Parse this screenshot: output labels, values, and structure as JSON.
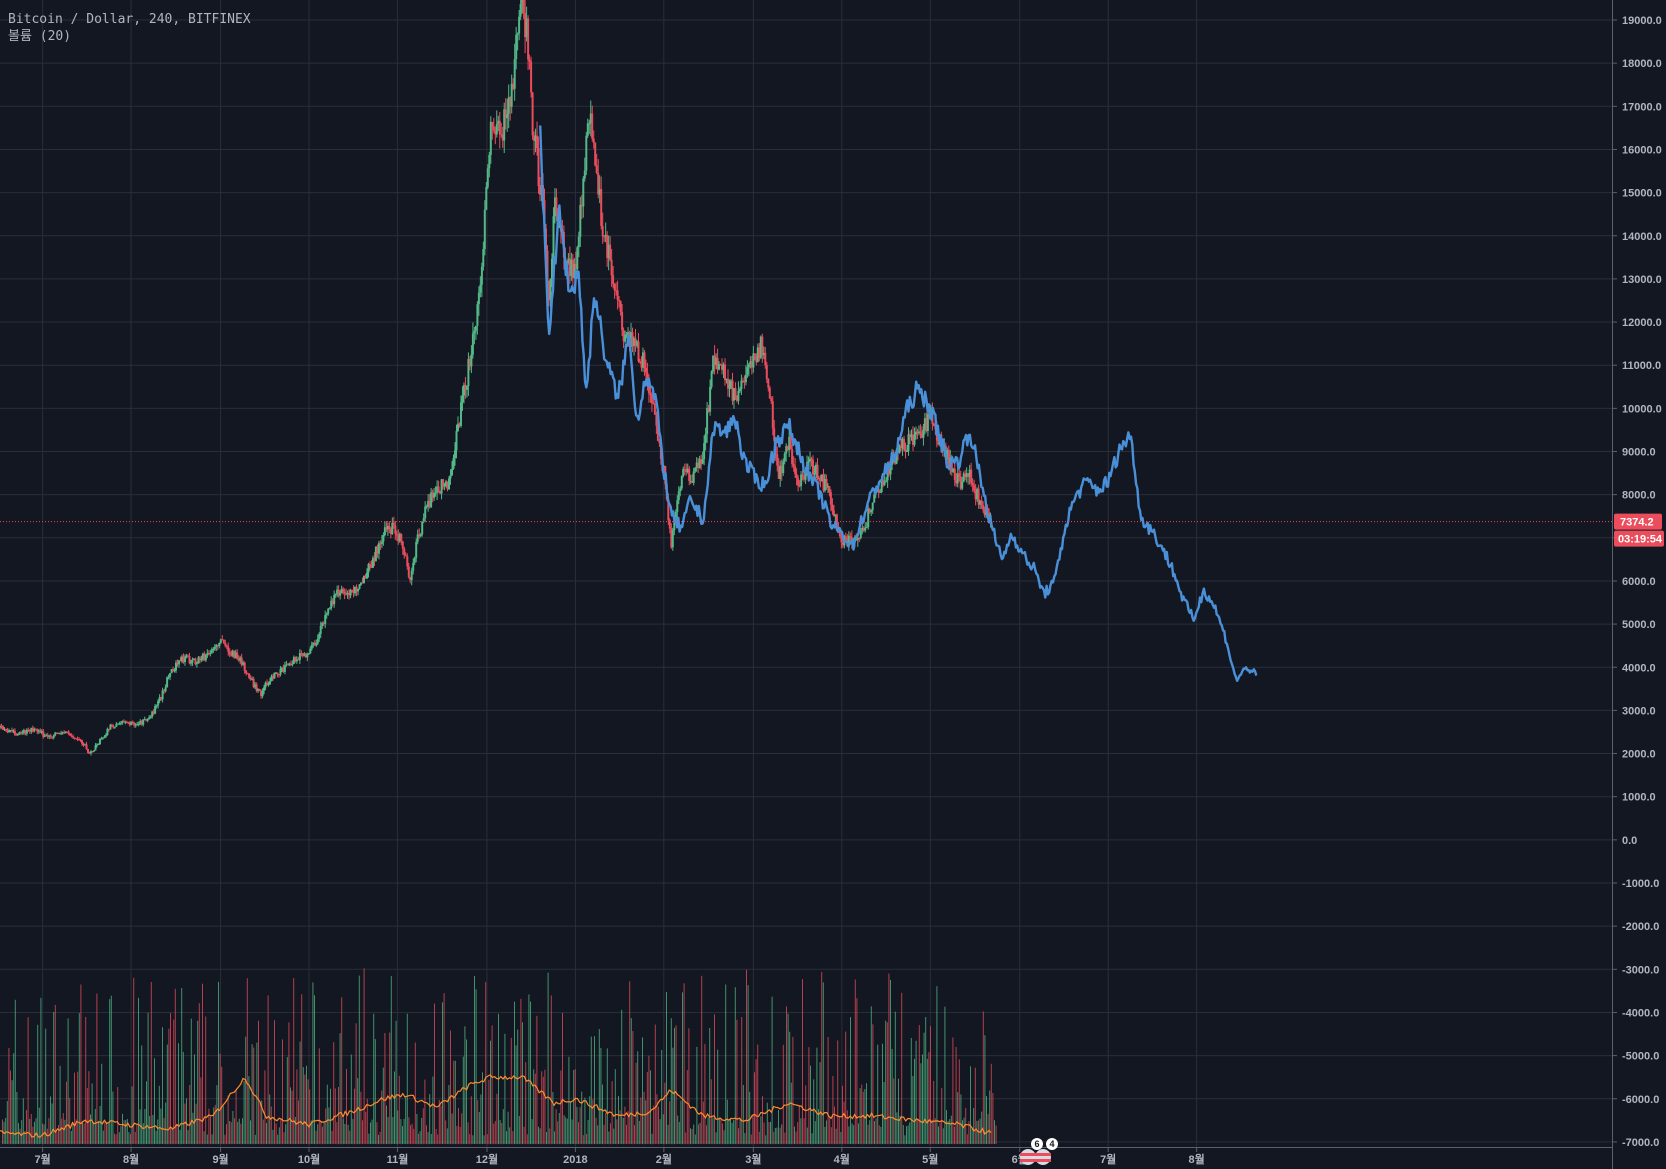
{
  "header": {
    "title": "Bitcoin / Dollar, 240, BITFINEX",
    "indicator": "볼륨 (20)"
  },
  "colors": {
    "background": "#131722",
    "grid": "#2a2e39",
    "up": "#53b987",
    "down": "#eb4d5c",
    "projection": "#4a90d9",
    "volume_ma": "#ff8c2e",
    "current_price": "#eb4d5c",
    "axis_text": "#b2b5be"
  },
  "current_price": {
    "value": 7374.2,
    "label": "7374.2",
    "countdown": "03:19:54"
  },
  "event_badges": [
    {
      "icon": "us-flag-icon",
      "count": "6"
    },
    {
      "icon": "us-flag-icon",
      "count": "4"
    }
  ],
  "chart_data": {
    "type": "line",
    "title": "Bitcoin / Dollar, 240, BITFINEX",
    "xlabel": "",
    "ylabel": "",
    "ylim": [
      -7000,
      19000
    ],
    "grid": true,
    "y_ticks": [
      19000,
      18000,
      17000,
      16000,
      15000,
      14000,
      13000,
      12000,
      11000,
      10000,
      9000,
      8000,
      7000,
      6000,
      5000,
      4000,
      3000,
      2000,
      1000,
      0,
      -1000,
      -2000,
      -3000,
      -4000,
      -5000,
      -6000,
      -7000
    ],
    "y_tick_labels": [
      "19000.0",
      "18000.0",
      "17000.0",
      "16000.0",
      "15000.0",
      "14000.0",
      "13000.0",
      "12000.0",
      "11000.0",
      "10000.0",
      "9000.0",
      "8000.0",
      "7000.0",
      "6000.0",
      "5000.0",
      "4000.0",
      "3000.0",
      "2000.0",
      "1000.0",
      "0.0",
      "-1000.0",
      "-2000.0",
      "-3000.0",
      "-4000.0",
      "-5000.0",
      "-6000.0",
      "-7000.0"
    ],
    "x_ticks": [
      {
        "label": "7월",
        "t": 2017.5
      },
      {
        "label": "8월",
        "t": 2017.583
      },
      {
        "label": "9월",
        "t": 2017.667
      },
      {
        "label": "10월",
        "t": 2017.75
      },
      {
        "label": "11월",
        "t": 2017.833
      },
      {
        "label": "12월",
        "t": 2017.917
      },
      {
        "label": "2018",
        "t": 2018.0
      },
      {
        "label": "2월",
        "t": 2018.083
      },
      {
        "label": "3월",
        "t": 2018.167
      },
      {
        "label": "4월",
        "t": 2018.25
      },
      {
        "label": "5월",
        "t": 2018.333
      },
      {
        "label": "6월",
        "t": 2018.417
      },
      {
        "label": "7월",
        "t": 2018.5
      },
      {
        "label": "8월",
        "t": 2018.583
      }
    ],
    "xlim": [
      2017.46,
      2018.68
    ],
    "series": [
      {
        "kind": "candles",
        "points": [
          [
            2017.46,
            2600
          ],
          [
            2017.475,
            2450
          ],
          [
            2017.49,
            2550
          ],
          [
            2017.505,
            2400
          ],
          [
            2017.52,
            2500
          ],
          [
            2017.535,
            2300
          ],
          [
            2017.545,
            2000
          ],
          [
            2017.555,
            2350
          ],
          [
            2017.565,
            2650
          ],
          [
            2017.575,
            2700
          ],
          [
            2017.59,
            2700
          ],
          [
            2017.6,
            2800
          ],
          [
            2017.61,
            3250
          ],
          [
            2017.62,
            3900
          ],
          [
            2017.63,
            4200
          ],
          [
            2017.645,
            4150
          ],
          [
            2017.655,
            4300
          ],
          [
            2017.667,
            4600
          ],
          [
            2017.675,
            4400
          ],
          [
            2017.685,
            4200
          ],
          [
            2017.695,
            3700
          ],
          [
            2017.705,
            3400
          ],
          [
            2017.715,
            3800
          ],
          [
            2017.73,
            4000
          ],
          [
            2017.74,
            4250
          ],
          [
            2017.75,
            4350
          ],
          [
            2017.76,
            4800
          ],
          [
            2017.77,
            5500
          ],
          [
            2017.78,
            5800
          ],
          [
            2017.79,
            5700
          ],
          [
            2017.8,
            6000
          ],
          [
            2017.81,
            6500
          ],
          [
            2017.82,
            7100
          ],
          [
            2017.83,
            7300
          ],
          [
            2017.84,
            6700
          ],
          [
            2017.845,
            5900
          ],
          [
            2017.85,
            6800
          ],
          [
            2017.86,
            7700
          ],
          [
            2017.87,
            8200
          ],
          [
            2017.88,
            8200
          ],
          [
            2017.89,
            9600
          ],
          [
            2017.9,
            11000
          ],
          [
            2017.91,
            12500
          ],
          [
            2017.915,
            14500
          ],
          [
            2017.92,
            16500
          ],
          [
            2017.93,
            16300
          ],
          [
            2017.94,
            17500
          ],
          [
            2017.95,
            19300
          ],
          [
            2017.955,
            18700
          ],
          [
            2017.96,
            16500
          ],
          [
            2017.97,
            14500
          ],
          [
            2017.975,
            12200
          ],
          [
            2017.98,
            14800
          ],
          [
            2017.99,
            13500
          ],
          [
            2018.0,
            13200
          ],
          [
            2018.01,
            16000
          ],
          [
            2018.015,
            16800
          ],
          [
            2018.025,
            14300
          ],
          [
            2018.035,
            13200
          ],
          [
            2018.045,
            11600
          ],
          [
            2018.055,
            11500
          ],
          [
            2018.065,
            11000
          ],
          [
            2018.075,
            9700
          ],
          [
            2018.083,
            8500
          ],
          [
            2018.09,
            6900
          ],
          [
            2018.1,
            8600
          ],
          [
            2018.11,
            8300
          ],
          [
            2018.12,
            9000
          ],
          [
            2018.13,
            11200
          ],
          [
            2018.14,
            10800
          ],
          [
            2018.15,
            10200
          ],
          [
            2018.16,
            10600
          ],
          [
            2018.167,
            11200
          ],
          [
            2018.175,
            11500
          ],
          [
            2018.185,
            9800
          ],
          [
            2018.19,
            8400
          ],
          [
            2018.2,
            9200
          ],
          [
            2018.21,
            8200
          ],
          [
            2018.22,
            8700
          ],
          [
            2018.23,
            8400
          ],
          [
            2018.24,
            7900
          ],
          [
            2018.25,
            6900
          ],
          [
            2018.26,
            7000
          ],
          [
            2018.27,
            7100
          ],
          [
            2018.28,
            8000
          ],
          [
            2018.29,
            8300
          ],
          [
            2018.3,
            8900
          ],
          [
            2018.31,
            9200
          ],
          [
            2018.32,
            9300
          ],
          [
            2018.333,
            9800
          ],
          [
            2018.34,
            9300
          ],
          [
            2018.35,
            8800
          ],
          [
            2018.36,
            8300
          ],
          [
            2018.37,
            8400
          ],
          [
            2018.38,
            7800
          ],
          [
            2018.39,
            7500
          ]
        ]
      },
      {
        "kind": "projection",
        "points": [
          [
            2017.967,
            16200
          ],
          [
            2017.975,
            11800
          ],
          [
            2017.985,
            14500
          ],
          [
            2017.995,
            12600
          ],
          [
            2018.003,
            13200
          ],
          [
            2018.01,
            10300
          ],
          [
            2018.018,
            12700
          ],
          [
            2018.028,
            11200
          ],
          [
            2018.04,
            10200
          ],
          [
            2018.05,
            11700
          ],
          [
            2018.058,
            9700
          ],
          [
            2018.066,
            10800
          ],
          [
            2018.075,
            10200
          ],
          [
            2018.083,
            8600
          ],
          [
            2018.09,
            7500
          ],
          [
            2018.1,
            7200
          ],
          [
            2018.108,
            7900
          ],
          [
            2018.12,
            7400
          ],
          [
            2018.13,
            9600
          ],
          [
            2018.14,
            9400
          ],
          [
            2018.15,
            9800
          ],
          [
            2018.158,
            8800
          ],
          [
            2018.168,
            8400
          ],
          [
            2018.178,
            8200
          ],
          [
            2018.188,
            9200
          ],
          [
            2018.2,
            9600
          ],
          [
            2018.21,
            9000
          ],
          [
            2018.22,
            8400
          ],
          [
            2018.23,
            8000
          ],
          [
            2018.24,
            7300
          ],
          [
            2018.25,
            7100
          ],
          [
            2018.26,
            6800
          ],
          [
            2018.27,
            7500
          ],
          [
            2018.28,
            8100
          ],
          [
            2018.29,
            8500
          ],
          [
            2018.3,
            8900
          ],
          [
            2018.31,
            9900
          ],
          [
            2018.32,
            10400
          ],
          [
            2018.33,
            10200
          ],
          [
            2018.34,
            9500
          ],
          [
            2018.35,
            8700
          ],
          [
            2018.36,
            8800
          ],
          [
            2018.37,
            9500
          ],
          [
            2018.38,
            8400
          ],
          [
            2018.39,
            7300
          ],
          [
            2018.4,
            6500
          ],
          [
            2018.41,
            7100
          ],
          [
            2018.42,
            6600
          ],
          [
            2018.43,
            6300
          ],
          [
            2018.44,
            5700
          ],
          [
            2018.45,
            6000
          ],
          [
            2018.46,
            7300
          ],
          [
            2018.47,
            8000
          ],
          [
            2018.48,
            8300
          ],
          [
            2018.49,
            8100
          ],
          [
            2018.5,
            8300
          ],
          [
            2018.51,
            9000
          ],
          [
            2018.52,
            9400
          ],
          [
            2018.525,
            8700
          ],
          [
            2018.53,
            7500
          ],
          [
            2018.54,
            7200
          ],
          [
            2018.55,
            6800
          ],
          [
            2018.56,
            6300
          ],
          [
            2018.57,
            5600
          ],
          [
            2018.58,
            5100
          ],
          [
            2018.59,
            5800
          ],
          [
            2018.6,
            5400
          ],
          [
            2018.61,
            4700
          ],
          [
            2018.62,
            3700
          ],
          [
            2018.63,
            4000
          ],
          [
            2018.64,
            3800
          ]
        ]
      },
      {
        "kind": "volume_ma",
        "points": [
          [
            2017.46,
            -6800
          ],
          [
            2017.5,
            -6850
          ],
          [
            2017.54,
            -6500
          ],
          [
            2017.58,
            -6600
          ],
          [
            2017.62,
            -6700
          ],
          [
            2017.66,
            -6400
          ],
          [
            2017.69,
            -5500
          ],
          [
            2017.71,
            -6400
          ],
          [
            2017.75,
            -6600
          ],
          [
            2017.79,
            -6300
          ],
          [
            2017.82,
            -6000
          ],
          [
            2017.84,
            -5900
          ],
          [
            2017.87,
            -6200
          ],
          [
            2017.9,
            -5700
          ],
          [
            2017.92,
            -5500
          ],
          [
            2017.95,
            -5500
          ],
          [
            2017.98,
            -6100
          ],
          [
            2018.0,
            -6000
          ],
          [
            2018.04,
            -6400
          ],
          [
            2018.07,
            -6300
          ],
          [
            2018.09,
            -5800
          ],
          [
            2018.12,
            -6400
          ],
          [
            2018.16,
            -6500
          ],
          [
            2018.2,
            -6100
          ],
          [
            2018.24,
            -6400
          ],
          [
            2018.28,
            -6400
          ],
          [
            2018.32,
            -6500
          ],
          [
            2018.36,
            -6600
          ],
          [
            2018.39,
            -6800
          ]
        ]
      }
    ]
  }
}
